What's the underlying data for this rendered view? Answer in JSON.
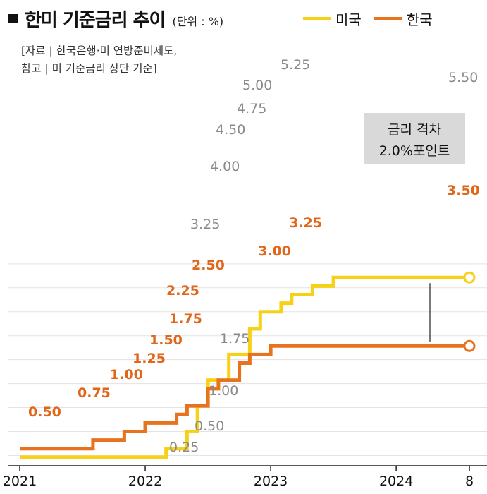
{
  "header": {
    "title": "한미 기준금리 추이",
    "unit": "(단위 : %)"
  },
  "legend": {
    "us_label": "미국",
    "kr_label": "한국"
  },
  "source": {
    "line1": "[자료 | 한국은행·미 연방준비제도,",
    "line2": "참고 | 미 기준금리 상단 기준]"
  },
  "annotation": {
    "line1": "금리 격차",
    "line2": "2.0%포인트"
  },
  "colors": {
    "us": "#f7d117",
    "kr": "#e8731e",
    "us_label": "#8a8a8a",
    "kr_label": "#e0661a",
    "annotation_bg": "#d9d9d9"
  },
  "chart_data": {
    "type": "line",
    "step": true,
    "x_tick_labels": [
      "2021",
      "2022",
      "2023",
      "2024",
      "8"
    ],
    "x_ticks": [
      "2021-01",
      "2022-01",
      "2023-01",
      "2024-01",
      "2024-08"
    ],
    "series": [
      {
        "name": "미국",
        "points": [
          [
            "2021-01",
            0.25
          ],
          [
            "2022-03",
            0.25
          ],
          [
            "2022-03",
            0.5
          ],
          [
            "2022-05",
            0.5
          ],
          [
            "2022-05",
            1.0
          ],
          [
            "2022-06",
            1.0
          ],
          [
            "2022-06",
            1.75
          ],
          [
            "2022-07",
            1.75
          ],
          [
            "2022-07",
            2.5
          ],
          [
            "2022-09",
            2.5
          ],
          [
            "2022-09",
            3.25
          ],
          [
            "2022-11",
            3.25
          ],
          [
            "2022-11",
            4.0
          ],
          [
            "2022-12",
            4.0
          ],
          [
            "2022-12",
            4.5
          ],
          [
            "2023-02",
            4.5
          ],
          [
            "2023-02",
            4.75
          ],
          [
            "2023-03",
            4.75
          ],
          [
            "2023-03",
            5.0
          ],
          [
            "2023-05",
            5.0
          ],
          [
            "2023-05",
            5.25
          ],
          [
            "2023-07",
            5.25
          ],
          [
            "2023-07",
            5.5
          ],
          [
            "2024-08",
            5.5
          ]
        ],
        "labels": [
          "0.25",
          "0.50",
          "1.00",
          "1.75",
          "3.25",
          "4.00",
          "4.50",
          "4.75",
          "5.00",
          "5.25",
          "5.50"
        ]
      },
      {
        "name": "한국",
        "points": [
          [
            "2021-01",
            0.5
          ],
          [
            "2021-08",
            0.5
          ],
          [
            "2021-08",
            0.75
          ],
          [
            "2021-11",
            0.75
          ],
          [
            "2021-11",
            1.0
          ],
          [
            "2022-01",
            1.0
          ],
          [
            "2022-01",
            1.25
          ],
          [
            "2022-04",
            1.25
          ],
          [
            "2022-04",
            1.5
          ],
          [
            "2022-05",
            1.5
          ],
          [
            "2022-05",
            1.75
          ],
          [
            "2022-07",
            1.75
          ],
          [
            "2022-07",
            2.25
          ],
          [
            "2022-08",
            2.25
          ],
          [
            "2022-08",
            2.5
          ],
          [
            "2022-10",
            2.5
          ],
          [
            "2022-10",
            3.0
          ],
          [
            "2022-11",
            3.0
          ],
          [
            "2022-11",
            3.25
          ],
          [
            "2023-01",
            3.25
          ],
          [
            "2023-01",
            3.5
          ],
          [
            "2024-08",
            3.5
          ]
        ],
        "labels": [
          "0.50",
          "0.75",
          "1.00",
          "1.25",
          "1.50",
          "1.75",
          "2.25",
          "2.50",
          "3.00",
          "3.25",
          "3.50"
        ]
      }
    ],
    "ylim": [
      0,
      6
    ],
    "grid": true,
    "legend_position": "top-right"
  }
}
